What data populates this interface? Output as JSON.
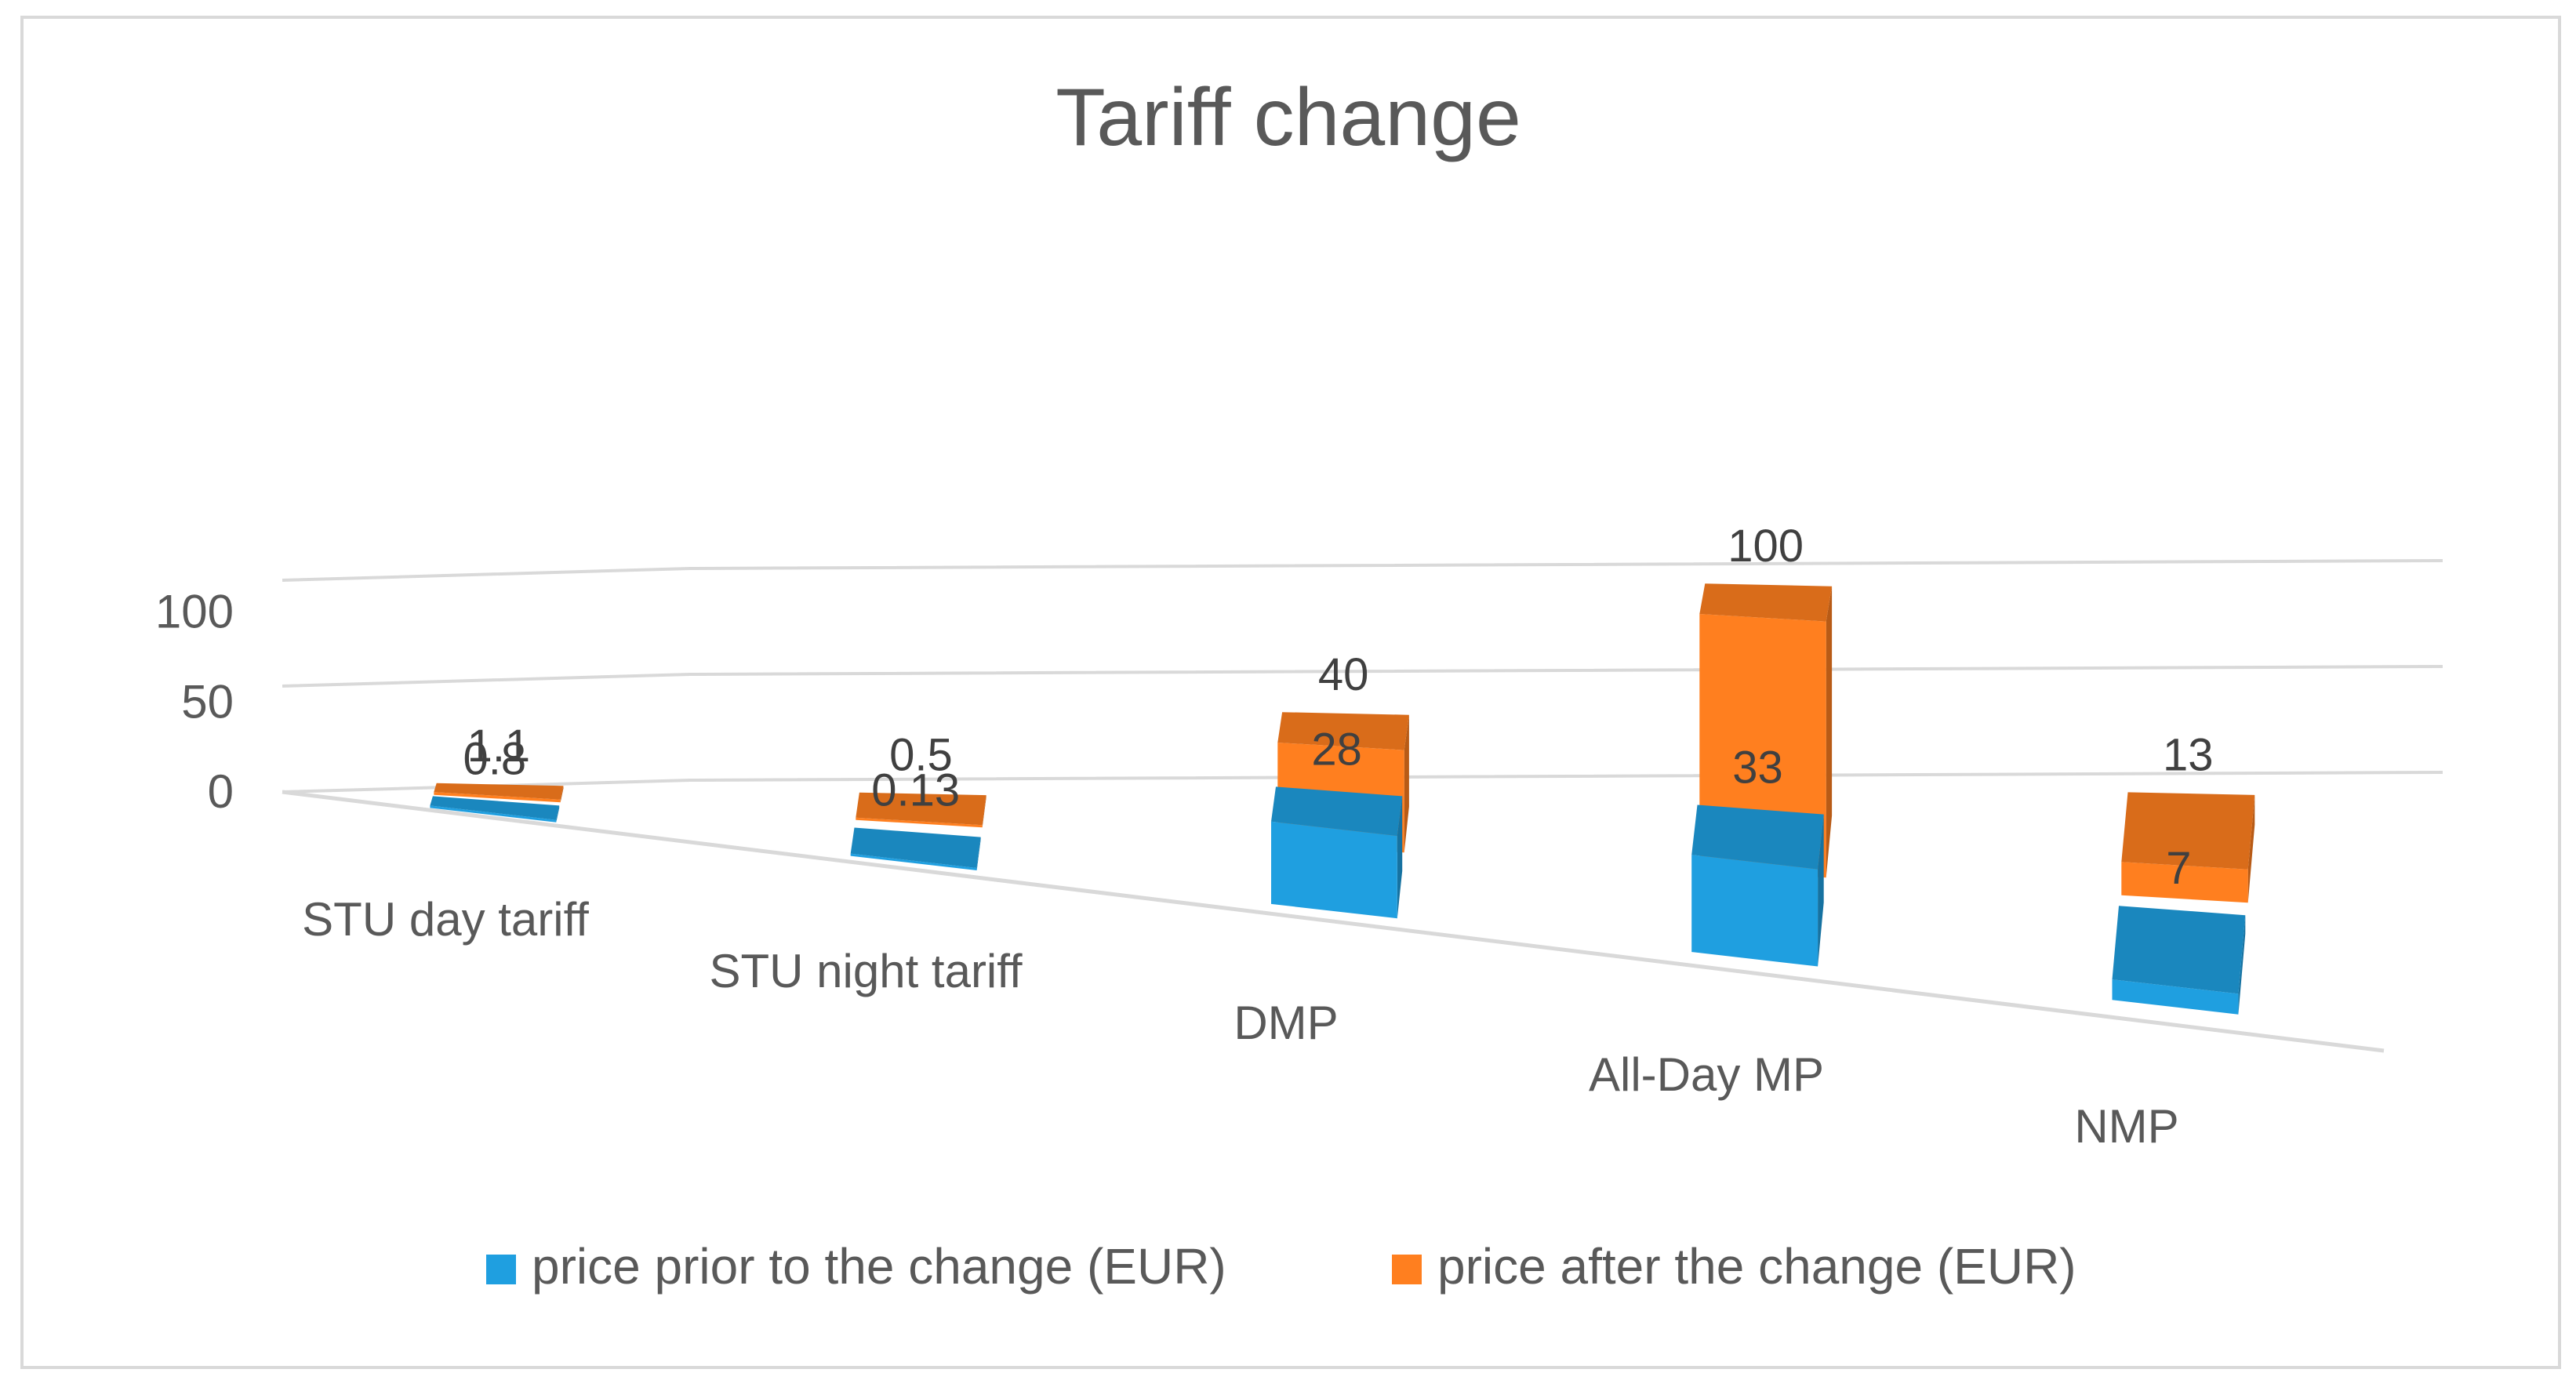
{
  "chart_data": {
    "type": "bar",
    "title": "Tariff change",
    "categories": [
      "STU day tariff",
      "STU night tariff",
      "DMP",
      "All-Day MP",
      "NMP"
    ],
    "series": [
      {
        "name": "price prior to the change (EUR)",
        "color": "#1F9FE0",
        "values": [
          0.8,
          0.13,
          28,
          33,
          7
        ]
      },
      {
        "name": "price after the change (EUR)",
        "color": "#FF7F1F",
        "values": [
          1.1,
          0.5,
          40,
          100,
          13
        ]
      }
    ],
    "data_labels": [
      [
        "0.8",
        "0.13",
        "28",
        "33",
        "7"
      ],
      [
        "1.1",
        "0.5",
        "40",
        "100",
        "13"
      ]
    ],
    "y_ticks": [
      0,
      50,
      100
    ],
    "tick_labels": [
      "0",
      "50",
      "100"
    ],
    "ylim": [
      0,
      100
    ],
    "xlabel": "",
    "ylabel": "",
    "grid": true,
    "legend": "bottom",
    "style": "3d-column"
  }
}
